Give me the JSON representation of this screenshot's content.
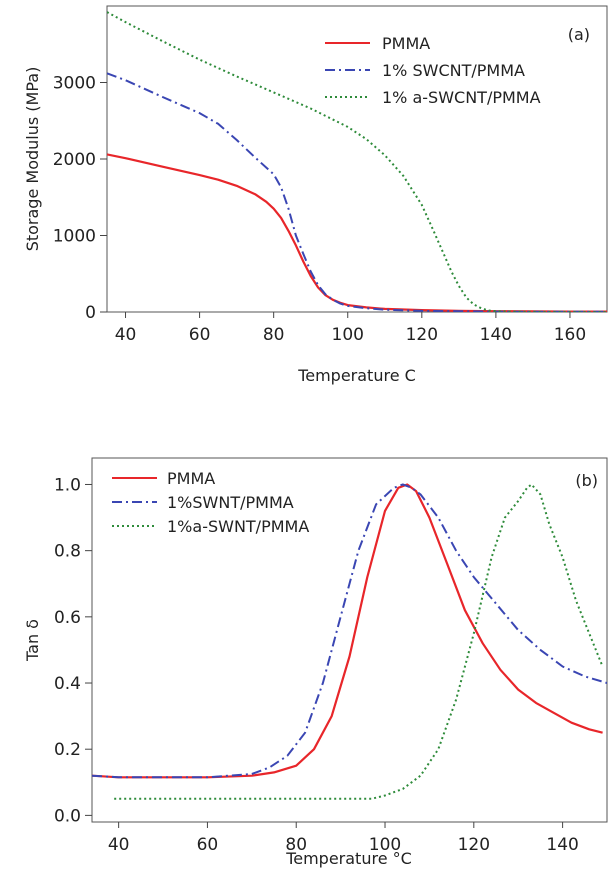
{
  "chart_data": [
    {
      "type": "line",
      "panel_label": "(a)",
      "xlabel": "Temperature C",
      "ylabel": "Storage Modulus (MPa)",
      "xlim": [
        35,
        170
      ],
      "ylim": [
        0,
        4000
      ],
      "xticks": [
        40,
        60,
        80,
        100,
        120,
        140,
        160
      ],
      "yticks": [
        0,
        1000,
        2000,
        3000
      ],
      "grid": false,
      "legend_position": "top-right",
      "series": [
        {
          "name": "PMMA",
          "color": "#e8262a",
          "style": "solid",
          "x": [
            35,
            40,
            50,
            60,
            65,
            70,
            75,
            78,
            80,
            82,
            84,
            86,
            88,
            90,
            92,
            94,
            96,
            98,
            100,
            105,
            110,
            120,
            130,
            140,
            150,
            160,
            170
          ],
          "y": [
            2060,
            2010,
            1900,
            1790,
            1730,
            1650,
            1540,
            1440,
            1350,
            1230,
            1060,
            870,
            660,
            470,
            320,
            220,
            160,
            120,
            90,
            60,
            40,
            25,
            15,
            10,
            8,
            5,
            5
          ]
        },
        {
          "name": "1% SWCNT/PMMA",
          "color": "#3a46b3",
          "style": "dashdot",
          "x": [
            35,
            40,
            50,
            60,
            65,
            70,
            75,
            80,
            82,
            84,
            86,
            88,
            90,
            92,
            94,
            96,
            98,
            100,
            105,
            110,
            120,
            130,
            140,
            150,
            160,
            170
          ],
          "y": [
            3120,
            3030,
            2810,
            2600,
            2460,
            2250,
            2020,
            1800,
            1630,
            1350,
            1000,
            760,
            530,
            350,
            230,
            160,
            110,
            80,
            50,
            30,
            15,
            10,
            5,
            3,
            2,
            2
          ]
        },
        {
          "name": "1% a-SWCNT/PMMA",
          "color": "#2e8b3a",
          "style": "dotted",
          "x": [
            35,
            40,
            50,
            60,
            70,
            80,
            90,
            100,
            105,
            110,
            115,
            120,
            123,
            126,
            128,
            130,
            132,
            134,
            136,
            138,
            140,
            145,
            150,
            160,
            170
          ],
          "y": [
            3920,
            3790,
            3540,
            3300,
            3080,
            2870,
            2660,
            2420,
            2260,
            2050,
            1780,
            1400,
            1080,
            750,
            530,
            340,
            190,
            100,
            50,
            20,
            10,
            5,
            2,
            1,
            0
          ]
        }
      ]
    },
    {
      "type": "line",
      "panel_label": "(b)",
      "xlabel": "Temperature °C",
      "ylabel": "Tan δ",
      "xlim": [
        34,
        150
      ],
      "ylim": [
        -0.02,
        1.08
      ],
      "xticks": [
        40,
        60,
        80,
        100,
        120,
        140
      ],
      "yticks": [
        0.0,
        0.2,
        0.4,
        0.6,
        0.8,
        1.0
      ],
      "grid": false,
      "legend_position": "top-left",
      "series": [
        {
          "name": "PMMA",
          "color": "#e8262a",
          "style": "solid",
          "x": [
            34,
            40,
            50,
            60,
            70,
            75,
            80,
            84,
            88,
            92,
            96,
            100,
            103,
            105,
            107,
            110,
            114,
            118,
            122,
            126,
            130,
            134,
            138,
            142,
            146,
            149
          ],
          "y": [
            0.12,
            0.115,
            0.115,
            0.115,
            0.12,
            0.13,
            0.15,
            0.2,
            0.3,
            0.48,
            0.72,
            0.92,
            0.99,
            1.0,
            0.98,
            0.9,
            0.76,
            0.62,
            0.52,
            0.44,
            0.38,
            0.34,
            0.31,
            0.28,
            0.26,
            0.25
          ]
        },
        {
          "name": "1%SWNT/PMMA",
          "color": "#3a46b3",
          "style": "dashdot",
          "x": [
            34,
            40,
            50,
            60,
            70,
            74,
            78,
            82,
            86,
            90,
            94,
            98,
            102,
            104,
            106,
            108,
            112,
            116,
            120,
            125,
            130,
            135,
            140,
            145,
            150
          ],
          "y": [
            0.12,
            0.115,
            0.115,
            0.115,
            0.125,
            0.145,
            0.18,
            0.25,
            0.4,
            0.6,
            0.8,
            0.94,
            0.99,
            1.0,
            0.99,
            0.97,
            0.9,
            0.8,
            0.72,
            0.64,
            0.56,
            0.5,
            0.45,
            0.42,
            0.4
          ]
        },
        {
          "name": "1%a-SWNT/PMMA",
          "color": "#2e8b3a",
          "style": "dotted",
          "x": [
            39,
            50,
            60,
            70,
            80,
            90,
            97,
            100,
            104,
            108,
            112,
            116,
            120,
            124,
            127,
            130,
            132,
            133,
            135,
            137,
            140,
            143,
            146,
            149
          ],
          "y": [
            0.05,
            0.05,
            0.05,
            0.05,
            0.05,
            0.05,
            0.05,
            0.06,
            0.08,
            0.12,
            0.2,
            0.35,
            0.55,
            0.78,
            0.9,
            0.95,
            0.99,
            1.0,
            0.97,
            0.88,
            0.78,
            0.65,
            0.55,
            0.45
          ]
        }
      ]
    }
  ]
}
